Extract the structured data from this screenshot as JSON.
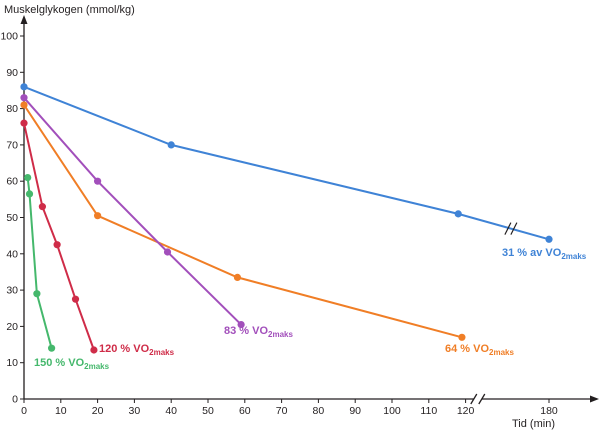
{
  "chart_data": {
    "type": "line",
    "ylabel": "Muskelglykogen (mmol/kg)",
    "xlabel": "Tid (min)",
    "ylim": [
      0,
      100
    ],
    "yticks": [
      0,
      10,
      20,
      30,
      40,
      50,
      60,
      70,
      80,
      90,
      100
    ],
    "xticks": [
      0,
      10,
      20,
      30,
      40,
      50,
      60,
      70,
      80,
      90,
      100,
      110,
      120,
      180
    ],
    "x_axis_break": [
      130,
      175
    ],
    "grid": false,
    "series": [
      {
        "name": "31 % av VO2maks",
        "label_main": "31 % av VO",
        "label_sub": "2maks",
        "color": "#3f83d6",
        "x": [
          0,
          40,
          118,
          180
        ],
        "y": [
          86,
          70,
          51,
          44
        ]
      },
      {
        "name": "64 % VO2maks",
        "label_main": "64 % VO",
        "label_sub": "2maks",
        "color": "#f07e26",
        "x": [
          0,
          20,
          58,
          119
        ],
        "y": [
          81,
          50.5,
          33.5,
          17
        ]
      },
      {
        "name": "83 % VO2maks",
        "label_main": "83 % VO",
        "label_sub": "2maks",
        "color": "#a24fbb",
        "x": [
          0,
          20,
          39,
          59
        ],
        "y": [
          83,
          60,
          40.5,
          20.5
        ]
      },
      {
        "name": "120 % VO2maks",
        "label_main": "120 % VO",
        "label_sub": "2maks",
        "color": "#cf2c48",
        "x": [
          0,
          5,
          9,
          14,
          19
        ],
        "y": [
          76,
          53,
          42.5,
          27.5,
          13.5
        ]
      },
      {
        "name": "150 % VO2maks",
        "label_main": "150 % VO",
        "label_sub": "2maks",
        "color": "#45b86c",
        "x": [
          1,
          1.5,
          3.5,
          7.5
        ],
        "y": [
          61,
          56.5,
          29,
          14
        ]
      }
    ]
  }
}
